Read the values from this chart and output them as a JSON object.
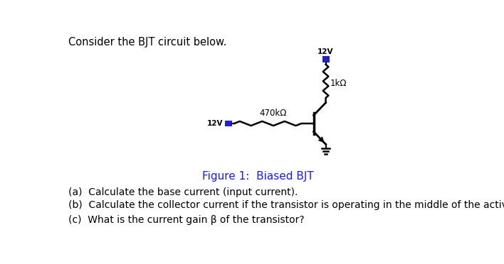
{
  "title_text": "Consider the BJT circuit below.",
  "figure_caption": "Figure 1:  Biased BJT",
  "label_12v_top": "12V",
  "label_1kohm": "1kΩ",
  "label_470kohm": "470kΩ",
  "label_12v_left": "12V",
  "question_a": "(a)  Calculate the base current (input current).",
  "question_b": "(b)  Calculate the collector current if the transistor is operating in the middle of the active region.",
  "question_c": "(c)  What is the current gain β of the transistor?",
  "bg_color": "#ffffff",
  "text_color": "#000000",
  "blue_color": "#2222cc",
  "circuit_color": "#000000",
  "voltage_box_color": "#2222cc",
  "caption_color": "#1a1aff"
}
